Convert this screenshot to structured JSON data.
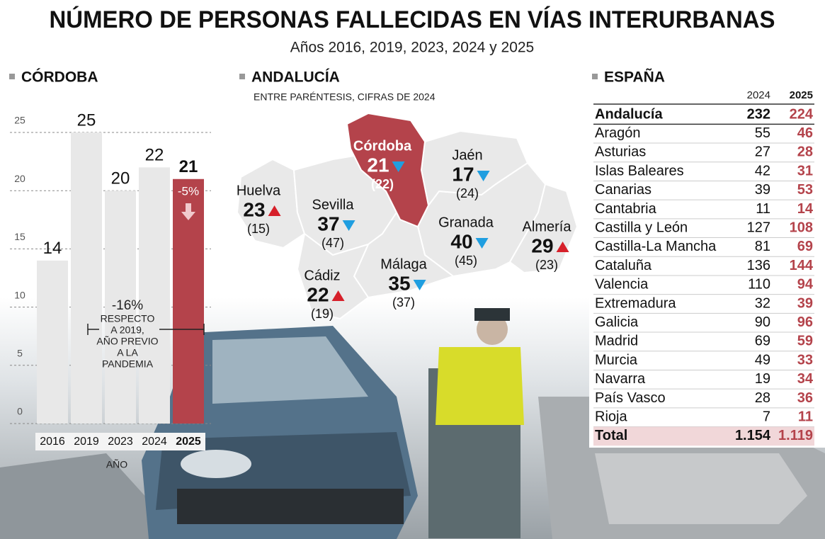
{
  "header": {
    "title": "NÚMERO DE PERSONAS FALLECIDAS EN VÍAS INTERURBANAS",
    "subtitle": "Años 2016, 2019, 2023, 2024 y 2025"
  },
  "chart_data": {
    "type": "bar",
    "title": "CÓRDOBA",
    "x_label": "AÑO",
    "categories": [
      "2016",
      "2019",
      "2023",
      "2024",
      "2025"
    ],
    "values": [
      14,
      25,
      20,
      22,
      21
    ],
    "colors": [
      "#e8e8e8",
      "#e8e8e8",
      "#e8e8e8",
      "#e8e8e8",
      "#b4434b"
    ],
    "ylim": [
      0,
      25
    ],
    "yticks": [
      0,
      5,
      10,
      15,
      20,
      25
    ],
    "grid": true,
    "annotations": [
      {
        "text": "-5%"
      },
      {
        "text": "-16%",
        "lines": [
          "RESPECTO",
          "A 2019,",
          "AÑO PREVIO",
          "A LA",
          "PANDEMIA"
        ]
      }
    ]
  },
  "map": {
    "title": "ANDALUCÍA",
    "note": "ENTRE PARÉNTESIS, CIFRAS DE 2024",
    "provinces": [
      {
        "name": "Huelva",
        "value": 23,
        "previous": "(15)",
        "trend": "up"
      },
      {
        "name": "Sevilla",
        "value": 37,
        "previous": "(47)",
        "trend": "down"
      },
      {
        "name": "Córdoba",
        "value": 21,
        "previous": "(22)",
        "trend": "down"
      },
      {
        "name": "Jaén",
        "value": 17,
        "previous": "(24)",
        "trend": "down"
      },
      {
        "name": "Granada",
        "value": 40,
        "previous": "(45)",
        "trend": "down"
      },
      {
        "name": "Almería",
        "value": 29,
        "previous": "(23)",
        "trend": "up"
      },
      {
        "name": "Cádiz",
        "value": 22,
        "previous": "(19)",
        "trend": "up"
      },
      {
        "name": "Málaga",
        "value": 35,
        "previous": "(37)",
        "trend": "down"
      }
    ]
  },
  "table": {
    "title": "ESPAÑA",
    "columns": [
      "2024",
      "2025"
    ],
    "rows": [
      [
        "Andalucía",
        232,
        224
      ],
      [
        "Aragón",
        55,
        46
      ],
      [
        "Asturias",
        27,
        28
      ],
      [
        "Islas Baleares",
        42,
        31
      ],
      [
        "Canarias",
        39,
        53
      ],
      [
        "Cantabria",
        11,
        14
      ],
      [
        "Castilla y León",
        127,
        108
      ],
      [
        "Castilla-La Mancha",
        81,
        69
      ],
      [
        "Cataluña",
        136,
        144
      ],
      [
        "Valencia",
        110,
        94
      ],
      [
        "Extremadura",
        32,
        39
      ],
      [
        "Galicia",
        90,
        96
      ],
      [
        "Madrid",
        69,
        59
      ],
      [
        "Murcia",
        49,
        33
      ],
      [
        "Navarra",
        19,
        34
      ],
      [
        "País Vasco",
        28,
        36
      ],
      [
        "Rioja",
        7,
        11
      ]
    ],
    "total": [
      "Total",
      "1.154",
      "1.119"
    ]
  }
}
